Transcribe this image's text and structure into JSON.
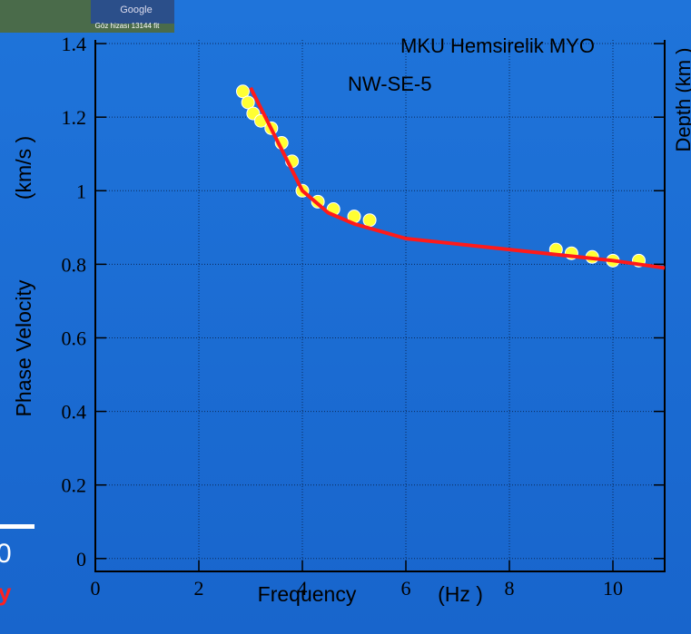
{
  "chart_data": {
    "type": "scatter",
    "title": "MKU Hemsirelik MYO",
    "subtitle": "NW-SE-5",
    "x_label": "Frequency",
    "x_unit": "(Hz )",
    "y_label": "Phase Velocity",
    "y_unit": "(km/s )",
    "xlim": [
      0,
      11
    ],
    "ylim": [
      -0.035,
      1.41
    ],
    "xticks": [
      0,
      2,
      4,
      6,
      8,
      10
    ],
    "yticks": [
      0,
      0.2,
      0.4,
      0.6,
      0.8,
      1,
      1.2,
      1.4
    ],
    "grid": true,
    "series": [
      {
        "type": "scatter",
        "color": "#ffff33",
        "x": [
          2.85,
          2.95,
          3.05,
          3.2,
          3.4,
          3.6,
          3.8,
          4.0,
          4.3,
          4.6,
          5.0,
          5.3,
          8.9,
          9.2,
          9.6,
          10.0,
          10.5
        ],
        "values": [
          1.27,
          1.24,
          1.21,
          1.19,
          1.17,
          1.13,
          1.08,
          1.0,
          0.97,
          0.95,
          0.93,
          0.92,
          0.84,
          0.83,
          0.82,
          0.81,
          0.81
        ]
      },
      {
        "type": "line",
        "color": "#ff1a1a",
        "x": [
          3.0,
          3.5,
          4.0,
          4.5,
          5.0,
          6.0,
          7.0,
          8.0,
          9.0,
          10.0,
          11.0
        ],
        "values": [
          1.28,
          1.14,
          1.0,
          0.94,
          0.91,
          0.87,
          0.855,
          0.84,
          0.825,
          0.81,
          0.79
        ]
      }
    ]
  },
  "fragments": {
    "right_label": "Depth (km )",
    "map_caption": "Göz hizası 13144 fit",
    "map_logo": "Google",
    "left_value": "0",
    "left_letter": "y"
  }
}
